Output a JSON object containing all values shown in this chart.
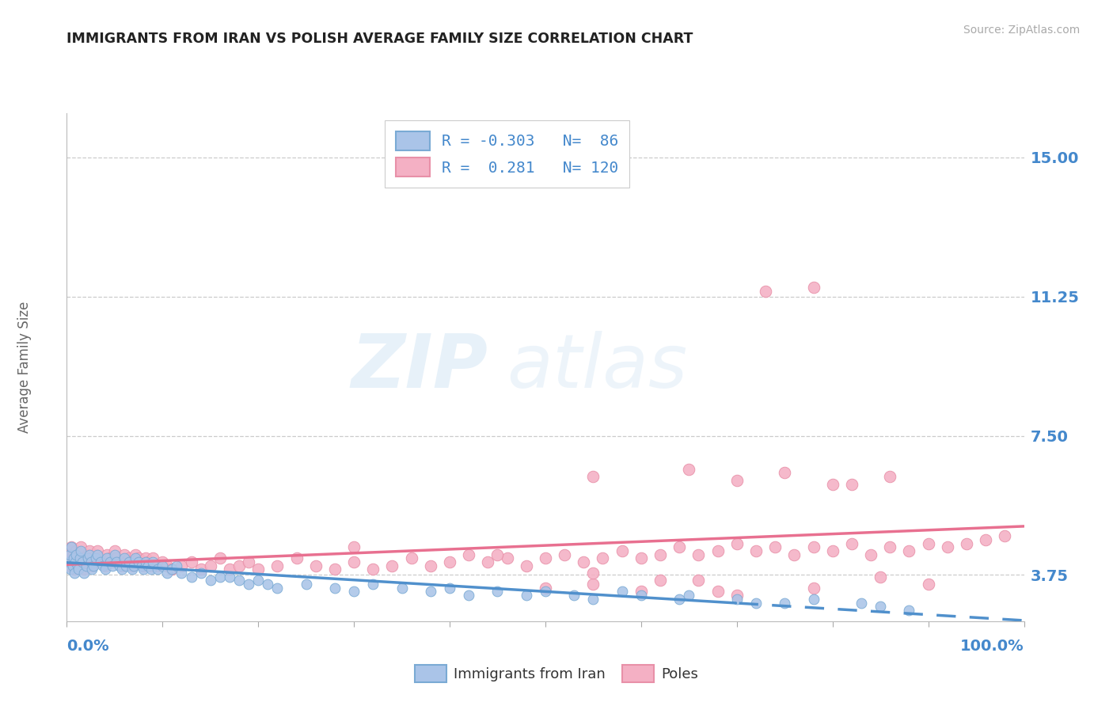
{
  "title": "IMMIGRANTS FROM IRAN VS POLISH AVERAGE FAMILY SIZE CORRELATION CHART",
  "source": "Source: ZipAtlas.com",
  "ylabel": "Average Family Size",
  "iran_R": -0.303,
  "iran_N": 86,
  "poles_R": 0.281,
  "poles_N": 120,
  "iran_color": "#aac4e8",
  "iran_edge_color": "#7aaad4",
  "poles_color": "#f4b0c4",
  "poles_edge_color": "#e890a8",
  "trend_iran_color": "#5090cc",
  "trend_poles_color": "#e87090",
  "background": "#ffffff",
  "axis_label_color": "#4488cc",
  "grid_color": "#cccccc",
  "title_color": "#222222",
  "legend_iran_label": "Immigrants from Iran",
  "legend_poles_label": "Poles",
  "yticks": [
    3.75,
    7.5,
    11.25,
    15.0
  ],
  "ylim": [
    2.5,
    16.2
  ],
  "xlim": [
    0.0,
    1.0
  ],
  "iran_x": [
    0.002,
    0.003,
    0.004,
    0.005,
    0.006,
    0.007,
    0.008,
    0.009,
    0.01,
    0.011,
    0.012,
    0.014,
    0.015,
    0.016,
    0.018,
    0.02,
    0.022,
    0.024,
    0.025,
    0.026,
    0.028,
    0.03,
    0.032,
    0.035,
    0.038,
    0.04,
    0.042,
    0.045,
    0.048,
    0.05,
    0.052,
    0.055,
    0.058,
    0.06,
    0.062,
    0.065,
    0.068,
    0.07,
    0.072,
    0.075,
    0.078,
    0.08,
    0.082,
    0.085,
    0.088,
    0.09,
    0.095,
    0.1,
    0.105,
    0.11,
    0.115,
    0.12,
    0.13,
    0.14,
    0.15,
    0.16,
    0.17,
    0.18,
    0.19,
    0.2,
    0.21,
    0.22,
    0.25,
    0.28,
    0.3,
    0.32,
    0.35,
    0.38,
    0.4,
    0.42,
    0.45,
    0.48,
    0.5,
    0.53,
    0.55,
    0.58,
    0.6,
    0.64,
    0.65,
    0.7,
    0.72,
    0.75,
    0.78,
    0.83,
    0.85,
    0.88
  ],
  "iran_y": [
    4.1,
    4.3,
    3.9,
    4.5,
    4.0,
    4.2,
    3.8,
    4.1,
    4.3,
    4.0,
    3.9,
    4.2,
    4.4,
    4.1,
    3.8,
    4.0,
    4.2,
    4.3,
    4.1,
    3.9,
    4.0,
    4.2,
    4.3,
    4.1,
    4.0,
    3.9,
    4.2,
    4.1,
    4.0,
    4.3,
    4.1,
    4.0,
    3.9,
    4.2,
    4.0,
    4.1,
    3.9,
    4.0,
    4.2,
    4.1,
    4.0,
    3.9,
    4.1,
    4.0,
    3.9,
    4.1,
    3.9,
    4.0,
    3.8,
    3.9,
    4.0,
    3.8,
    3.7,
    3.8,
    3.6,
    3.7,
    3.7,
    3.6,
    3.5,
    3.6,
    3.5,
    3.4,
    3.5,
    3.4,
    3.3,
    3.5,
    3.4,
    3.3,
    3.4,
    3.2,
    3.3,
    3.2,
    3.3,
    3.2,
    3.1,
    3.3,
    3.2,
    3.1,
    3.2,
    3.1,
    3.0,
    3.0,
    3.1,
    3.0,
    2.9,
    2.8
  ],
  "poles_x": [
    0.002,
    0.003,
    0.004,
    0.005,
    0.006,
    0.007,
    0.008,
    0.009,
    0.01,
    0.011,
    0.012,
    0.014,
    0.015,
    0.016,
    0.018,
    0.02,
    0.022,
    0.024,
    0.025,
    0.026,
    0.028,
    0.03,
    0.032,
    0.035,
    0.038,
    0.04,
    0.042,
    0.045,
    0.048,
    0.05,
    0.052,
    0.055,
    0.058,
    0.06,
    0.062,
    0.065,
    0.068,
    0.07,
    0.072,
    0.075,
    0.078,
    0.08,
    0.082,
    0.085,
    0.088,
    0.09,
    0.095,
    0.1,
    0.105,
    0.11,
    0.12,
    0.13,
    0.14,
    0.15,
    0.16,
    0.17,
    0.18,
    0.19,
    0.2,
    0.22,
    0.24,
    0.26,
    0.28,
    0.3,
    0.32,
    0.34,
    0.36,
    0.38,
    0.4,
    0.42,
    0.44,
    0.46,
    0.48,
    0.5,
    0.52,
    0.54,
    0.56,
    0.58,
    0.6,
    0.62,
    0.64,
    0.66,
    0.68,
    0.7,
    0.72,
    0.74,
    0.76,
    0.78,
    0.8,
    0.82,
    0.84,
    0.86,
    0.88,
    0.9,
    0.92,
    0.94,
    0.96,
    0.98,
    0.3,
    0.45,
    0.55,
    0.65,
    0.7,
    0.75,
    0.8,
    0.5,
    0.6,
    0.7,
    0.55,
    0.62,
    0.68,
    0.73,
    0.78,
    0.82,
    0.86,
    0.9,
    0.55,
    0.66,
    0.78,
    0.85
  ],
  "poles_y": [
    4.2,
    4.4,
    4.0,
    4.5,
    4.1,
    4.3,
    3.9,
    4.2,
    4.4,
    4.1,
    4.0,
    4.3,
    4.5,
    4.2,
    3.9,
    4.1,
    4.3,
    4.4,
    4.2,
    4.0,
    4.1,
    4.3,
    4.4,
    4.2,
    4.1,
    4.0,
    4.3,
    4.2,
    4.1,
    4.4,
    4.2,
    4.1,
    4.0,
    4.3,
    4.1,
    4.2,
    4.0,
    4.1,
    4.3,
    4.2,
    4.1,
    4.0,
    4.2,
    4.1,
    4.0,
    4.2,
    4.0,
    4.1,
    4.0,
    3.9,
    4.0,
    4.1,
    3.9,
    4.0,
    4.2,
    3.9,
    4.0,
    4.1,
    3.9,
    4.0,
    4.2,
    4.0,
    3.9,
    4.1,
    3.9,
    4.0,
    4.2,
    4.0,
    4.1,
    4.3,
    4.1,
    4.2,
    4.0,
    4.2,
    4.3,
    4.1,
    4.2,
    4.4,
    4.2,
    4.3,
    4.5,
    4.3,
    4.4,
    4.6,
    4.4,
    4.5,
    4.3,
    4.5,
    4.4,
    4.6,
    4.3,
    4.5,
    4.4,
    4.6,
    4.5,
    4.6,
    4.7,
    4.8,
    4.5,
    4.3,
    6.4,
    6.6,
    6.3,
    6.5,
    6.2,
    3.4,
    3.3,
    3.2,
    3.5,
    3.6,
    3.3,
    11.4,
    11.5,
    6.2,
    6.4,
    3.5,
    3.8,
    3.6,
    3.4,
    3.7
  ]
}
